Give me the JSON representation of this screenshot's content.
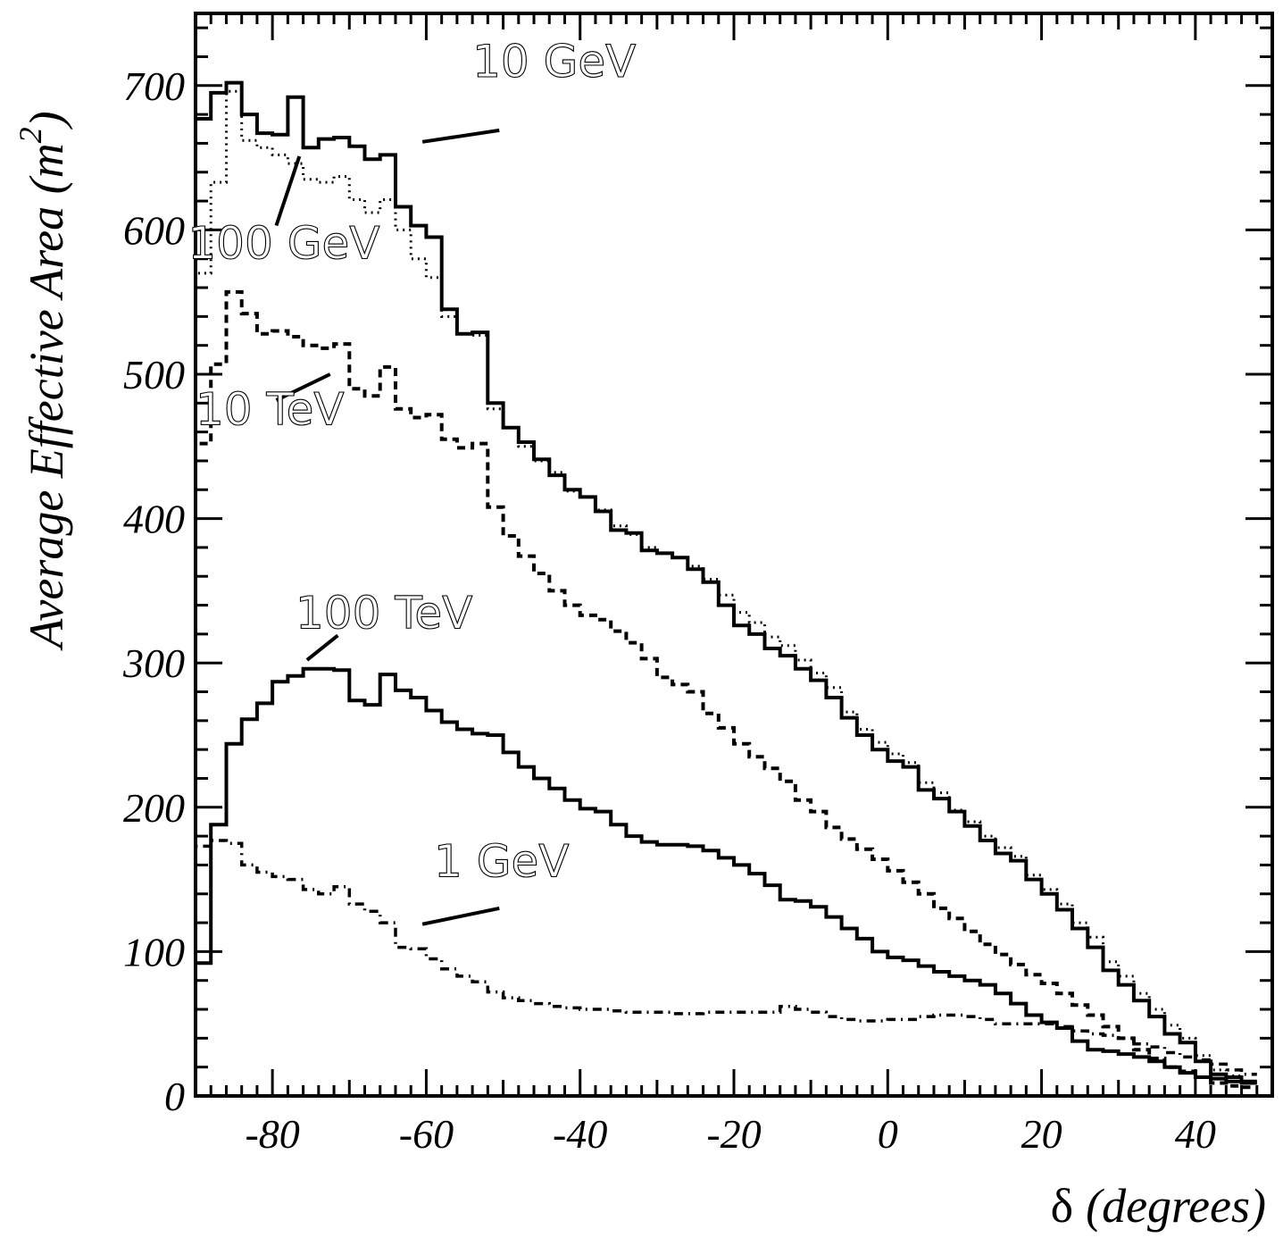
{
  "chart_data": {
    "type": "line",
    "step": true,
    "title": "",
    "xlabel": "δ (degrees)",
    "ylabel": "Average Effective Area (m²)",
    "ylabel_main": "Average Effective Area (m",
    "ylabel_sup": "2",
    "ylabel_end": ")",
    "xlabel_symbol": "δ",
    "xlabel_unit": "(degrees)",
    "xlim": [
      -90,
      50
    ],
    "ylim": [
      0,
      750
    ],
    "xticks": [
      -80,
      -60,
      -40,
      -20,
      0,
      20,
      40
    ],
    "xtick_labels": [
      "-80",
      "-60",
      "-40",
      "-20",
      "0",
      "20",
      "40"
    ],
    "yticks": [
      0,
      100,
      200,
      300,
      400,
      500,
      600,
      700
    ],
    "ytick_labels": [
      "0",
      "100",
      "200",
      "300",
      "400",
      "500",
      "600",
      "700"
    ],
    "bin_width": 2,
    "series": [
      {
        "name": "10 GeV",
        "style": "solid",
        "edges": [
          -90,
          -88,
          -86,
          -84,
          -82,
          -80,
          -78,
          -76,
          -74,
          -72,
          -70,
          -68,
          -66,
          -64,
          -62,
          -60,
          -58,
          -56,
          -54,
          -52,
          -50,
          -48,
          -46,
          -44,
          -42,
          -40,
          -38,
          -36,
          -34,
          -32,
          -30,
          -28,
          -26,
          -24,
          -22,
          -20,
          -18,
          -16,
          -14,
          -12,
          -10,
          -8,
          -6,
          -4,
          -2,
          0,
          2,
          4,
          6,
          8,
          10,
          12,
          14,
          16,
          18,
          20,
          22,
          24,
          26,
          28,
          30,
          32,
          34,
          36,
          38,
          40,
          42,
          44,
          46,
          48
        ],
        "values": [
          677,
          695,
          702,
          680,
          667,
          666,
          692,
          657,
          663,
          664,
          658,
          649,
          652,
          616,
          603,
          595,
          545,
          528,
          529,
          480,
          463,
          453,
          441,
          430,
          420,
          415,
          405,
          392,
          390,
          378,
          376,
          373,
          365,
          356,
          340,
          326,
          320,
          310,
          305,
          296,
          288,
          276,
          262,
          250,
          240,
          232,
          228,
          212,
          206,
          197,
          187,
          177,
          168,
          163,
          150,
          140,
          129,
          116,
          103,
          87,
          77,
          66,
          55,
          43,
          37,
          24,
          15,
          13,
          10
        ],
        "label": "10 GeV",
        "label_pos": [
          -54,
          706
        ],
        "leader": [
          [
            -60.5,
            661
          ],
          [
            -50.5,
            669
          ]
        ]
      },
      {
        "name": "100 GeV",
        "style": "dotted",
        "edges": [
          -90,
          -88,
          -86,
          -84,
          -82,
          -80,
          -78,
          -76,
          -74,
          -72,
          -70,
          -68,
          -66,
          -64,
          -62,
          -60,
          -58,
          -56,
          -54,
          -52,
          -50,
          -48,
          -46,
          -44,
          -42,
          -40,
          -38,
          -36,
          -34,
          -32,
          -30,
          -28,
          -26,
          -24,
          -22,
          -20,
          -18,
          -16,
          -14,
          -12,
          -10,
          -8,
          -6,
          -4,
          -2,
          0,
          2,
          4,
          6,
          8,
          10,
          12,
          14,
          16,
          18,
          20,
          22,
          24,
          26,
          28,
          30,
          32,
          34,
          36,
          38,
          40,
          42,
          44,
          46,
          48
        ],
        "values": [
          570,
          633,
          696,
          662,
          657,
          652,
          646,
          635,
          633,
          637,
          621,
          612,
          621,
          600,
          580,
          567,
          540,
          528,
          527,
          476,
          463,
          450,
          440,
          432,
          419,
          415,
          406,
          395,
          389,
          380,
          376,
          373,
          367,
          358,
          347,
          335,
          328,
          318,
          312,
          302,
          293,
          283,
          266,
          254,
          245,
          237,
          231,
          217,
          210,
          198,
          190,
          180,
          172,
          166,
          153,
          143,
          133,
          120,
          110,
          93,
          83,
          71,
          60,
          49,
          40,
          28,
          18,
          14,
          10
        ],
        "label": "100 GeV",
        "label_pos": [
          -91,
          580
        ],
        "leader": [
          [
            -79.5,
            603
          ],
          [
            -76.5,
            651
          ]
        ]
      },
      {
        "name": "10 TeV",
        "style": "dashed",
        "edges": [
          -90,
          -88,
          -86,
          -84,
          -82,
          -80,
          -78,
          -76,
          -74,
          -72,
          -70,
          -68,
          -66,
          -64,
          -62,
          -60,
          -58,
          -56,
          -54,
          -52,
          -50,
          -48,
          -46,
          -44,
          -42,
          -40,
          -38,
          -36,
          -34,
          -32,
          -30,
          -28,
          -26,
          -24,
          -22,
          -20,
          -18,
          -16,
          -14,
          -12,
          -10,
          -8,
          -6,
          -4,
          -2,
          0,
          2,
          4,
          6,
          8,
          10,
          12,
          14,
          16,
          18,
          20,
          22,
          24,
          26,
          28,
          30,
          32,
          34,
          36,
          38,
          40,
          42,
          44,
          46,
          48
        ],
        "values": [
          452,
          507,
          557,
          542,
          528,
          530,
          526,
          520,
          518,
          521,
          490,
          485,
          505,
          476,
          470,
          472,
          455,
          449,
          452,
          408,
          388,
          374,
          362,
          350,
          340,
          333,
          330,
          322,
          314,
          303,
          290,
          285,
          280,
          265,
          255,
          244,
          235,
          227,
          218,
          205,
          197,
          186,
          178,
          171,
          164,
          156,
          148,
          140,
          130,
          123,
          114,
          105,
          98,
          91,
          84,
          78,
          71,
          63,
          56,
          48,
          40,
          32,
          26,
          20,
          17,
          13,
          9,
          7,
          6
        ],
        "label": "10 TeV",
        "label_pos": [
          -90,
          465
        ],
        "leader": [
          [
            -79.5,
            482
          ],
          [
            -72.5,
            500
          ]
        ]
      },
      {
        "name": "100 TeV",
        "style": "solid",
        "edges": [
          -90,
          -88,
          -86,
          -84,
          -82,
          -80,
          -78,
          -76,
          -74,
          -72,
          -70,
          -68,
          -66,
          -64,
          -62,
          -60,
          -58,
          -56,
          -54,
          -52,
          -50,
          -48,
          -46,
          -44,
          -42,
          -40,
          -38,
          -36,
          -34,
          -32,
          -30,
          -28,
          -26,
          -24,
          -22,
          -20,
          -18,
          -16,
          -14,
          -12,
          -10,
          -8,
          -6,
          -4,
          -2,
          0,
          2,
          4,
          6,
          8,
          10,
          12,
          14,
          16,
          18,
          20,
          22,
          24,
          26,
          28,
          30,
          32,
          34,
          36,
          38,
          40,
          42,
          44,
          46,
          48
        ],
        "values": [
          92,
          188,
          244,
          261,
          272,
          287,
          291,
          296,
          296,
          295,
          274,
          271,
          292,
          281,
          276,
          267,
          259,
          254,
          251,
          250,
          238,
          228,
          220,
          213,
          205,
          199,
          197,
          188,
          180,
          176,
          174,
          174,
          173,
          170,
          165,
          160,
          154,
          146,
          136,
          135,
          131,
          124,
          116,
          109,
          100,
          96,
          94,
          90,
          86,
          83,
          80,
          77,
          71,
          64,
          56,
          51,
          47,
          38,
          32,
          31,
          29,
          27,
          24,
          20,
          16,
          13,
          12,
          10,
          9
        ],
        "label": "100 TeV",
        "label_pos": [
          -77,
          324
        ],
        "leader": [
          [
            -75.5,
            302
          ],
          [
            -71.5,
            319
          ]
        ]
      },
      {
        "name": "1 GeV",
        "style": "dashdot",
        "edges": [
          -90,
          -88,
          -86,
          -84,
          -82,
          -80,
          -78,
          -76,
          -74,
          -72,
          -70,
          -68,
          -66,
          -64,
          -62,
          -60,
          -58,
          -56,
          -54,
          -52,
          -50,
          -48,
          -46,
          -44,
          -42,
          -40,
          -38,
          -36,
          -34,
          -32,
          -30,
          -28,
          -26,
          -24,
          -22,
          -20,
          -18,
          -16,
          -14,
          -12,
          -10,
          -8,
          -6,
          -4,
          -2,
          0,
          2,
          4,
          6,
          8,
          10,
          12,
          14,
          16,
          18,
          20,
          22,
          24,
          26,
          28,
          30,
          32,
          34,
          36,
          38,
          40,
          42,
          44,
          46,
          48
        ],
        "values": [
          173,
          177,
          175,
          160,
          155,
          152,
          150,
          143,
          140,
          145,
          133,
          128,
          120,
          103,
          102,
          95,
          88,
          83,
          79,
          72,
          68,
          66,
          64,
          62,
          61,
          60,
          60,
          59,
          58,
          58,
          58,
          57,
          57,
          58,
          58,
          58,
          58,
          58,
          62,
          60,
          58,
          55,
          53,
          52,
          52,
          53,
          53,
          55,
          56,
          56,
          55,
          53,
          50,
          50,
          50,
          50,
          48,
          45,
          43,
          42,
          40,
          36,
          34,
          30,
          27,
          25,
          22,
          18,
          15
        ],
        "label": "1 GeV",
        "label_pos": [
          -59,
          152
        ],
        "leader": [
          [
            -60.5,
            119
          ],
          [
            -50.5,
            130
          ]
        ]
      }
    ]
  }
}
